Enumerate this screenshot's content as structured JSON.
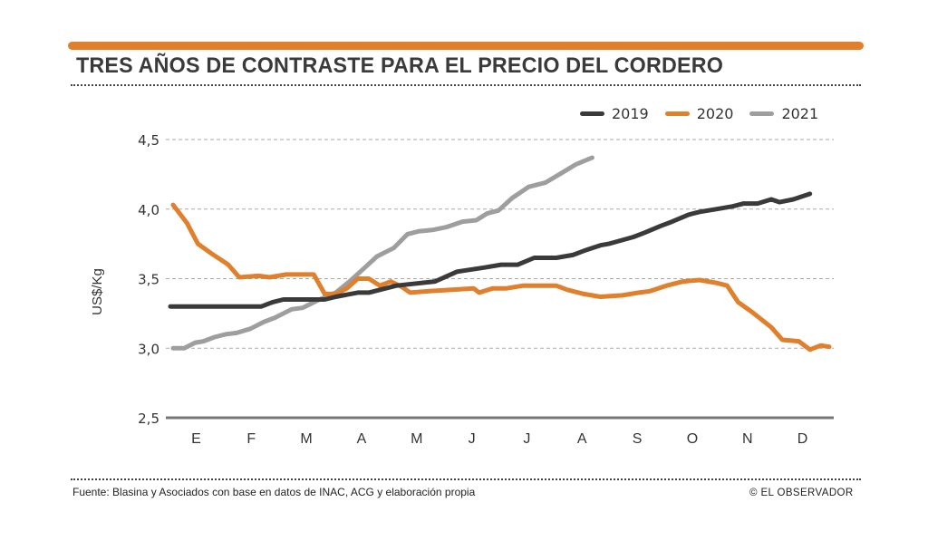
{
  "header": {
    "title": "TRES AÑOS DE CONTRASTE PARA EL PRECIO DEL CORDERO",
    "accent_color": "#e07f2c"
  },
  "footer": {
    "source": "Fuente: Blasina y Asociados con base en datos de INAC, ACG y elaboración propia",
    "credit": "© EL OBSERVADOR"
  },
  "chart_data": {
    "type": "line",
    "title": "TRES AÑOS DE CONTRASTE PARA EL PRECIO DEL CORDERO",
    "xlabel": "",
    "ylabel": "US$/Kg",
    "ylim": [
      2.5,
      4.5
    ],
    "xlim": [
      0,
      12
    ],
    "yticks": [
      "4,5",
      "4,0",
      "3,5",
      "3,0",
      "2,5"
    ],
    "ytick_values": [
      4.5,
      4.0,
      3.5,
      3.0,
      2.5
    ],
    "categories": [
      "E",
      "F",
      "M",
      "A",
      "M",
      "J",
      "J",
      "A",
      "S",
      "O",
      "N",
      "D"
    ],
    "grid": true,
    "legend_position": "top-right",
    "x_units": "months elapsed since January 1 (0–12)",
    "series": [
      {
        "name": "2019",
        "color": "#3a3a3a",
        "points": [
          [
            0.0,
            3.3
          ],
          [
            1.65,
            3.3
          ],
          [
            1.85,
            3.33
          ],
          [
            2.05,
            3.35
          ],
          [
            2.8,
            3.35
          ],
          [
            3.0,
            3.37
          ],
          [
            3.4,
            3.4
          ],
          [
            3.6,
            3.4
          ],
          [
            4.1,
            3.45
          ],
          [
            4.8,
            3.48
          ],
          [
            5.2,
            3.55
          ],
          [
            5.7,
            3.58
          ],
          [
            6.0,
            3.6
          ],
          [
            6.3,
            3.6
          ],
          [
            6.6,
            3.65
          ],
          [
            7.0,
            3.65
          ],
          [
            7.3,
            3.67
          ],
          [
            7.5,
            3.7
          ],
          [
            7.8,
            3.74
          ],
          [
            7.95,
            3.75
          ],
          [
            8.4,
            3.8
          ],
          [
            8.6,
            3.83
          ],
          [
            8.9,
            3.88
          ],
          [
            9.1,
            3.91
          ],
          [
            9.4,
            3.96
          ],
          [
            9.6,
            3.98
          ],
          [
            9.9,
            4.0
          ],
          [
            10.2,
            4.02
          ],
          [
            10.4,
            4.04
          ],
          [
            10.65,
            4.04
          ],
          [
            10.9,
            4.07
          ],
          [
            11.05,
            4.05
          ],
          [
            11.3,
            4.07
          ],
          [
            11.6,
            4.11
          ]
        ]
      },
      {
        "name": "2020",
        "color": "#e07f2c",
        "points": [
          [
            0.05,
            4.03
          ],
          [
            0.3,
            3.9
          ],
          [
            0.5,
            3.75
          ],
          [
            0.75,
            3.68
          ],
          [
            1.05,
            3.6
          ],
          [
            1.25,
            3.51
          ],
          [
            1.6,
            3.52
          ],
          [
            1.8,
            3.51
          ],
          [
            2.1,
            3.53
          ],
          [
            2.6,
            3.53
          ],
          [
            2.8,
            3.39
          ],
          [
            3.0,
            3.39
          ],
          [
            3.2,
            3.43
          ],
          [
            3.4,
            3.5
          ],
          [
            3.6,
            3.5
          ],
          [
            3.8,
            3.45
          ],
          [
            4.0,
            3.48
          ],
          [
            4.2,
            3.44
          ],
          [
            4.35,
            3.4
          ],
          [
            4.7,
            3.41
          ],
          [
            5.1,
            3.42
          ],
          [
            5.5,
            3.43
          ],
          [
            5.6,
            3.4
          ],
          [
            5.85,
            3.43
          ],
          [
            6.1,
            3.43
          ],
          [
            6.4,
            3.45
          ],
          [
            7.0,
            3.45
          ],
          [
            7.2,
            3.42
          ],
          [
            7.5,
            3.39
          ],
          [
            7.8,
            3.37
          ],
          [
            8.2,
            3.38
          ],
          [
            8.5,
            3.4
          ],
          [
            8.7,
            3.41
          ],
          [
            9.0,
            3.45
          ],
          [
            9.3,
            3.48
          ],
          [
            9.6,
            3.49
          ],
          [
            9.9,
            3.47
          ],
          [
            10.1,
            3.45
          ],
          [
            10.3,
            3.33
          ],
          [
            10.55,
            3.26
          ],
          [
            10.9,
            3.15
          ],
          [
            11.1,
            3.06
          ],
          [
            11.4,
            3.05
          ],
          [
            11.6,
            2.99
          ],
          [
            11.8,
            3.02
          ],
          [
            11.95,
            3.01
          ]
        ]
      },
      {
        "name": "2021",
        "color": "#9e9e9e",
        "points": [
          [
            0.05,
            3.0
          ],
          [
            0.25,
            3.0
          ],
          [
            0.45,
            3.04
          ],
          [
            0.6,
            3.05
          ],
          [
            0.8,
            3.08
          ],
          [
            1.0,
            3.1
          ],
          [
            1.2,
            3.11
          ],
          [
            1.45,
            3.14
          ],
          [
            1.7,
            3.19
          ],
          [
            1.9,
            3.22
          ],
          [
            2.2,
            3.28
          ],
          [
            2.4,
            3.29
          ],
          [
            2.65,
            3.34
          ],
          [
            3.0,
            3.4
          ],
          [
            3.25,
            3.48
          ],
          [
            3.5,
            3.57
          ],
          [
            3.75,
            3.66
          ],
          [
            4.05,
            3.72
          ],
          [
            4.3,
            3.82
          ],
          [
            4.5,
            3.84
          ],
          [
            4.75,
            3.85
          ],
          [
            5.0,
            3.87
          ],
          [
            5.3,
            3.91
          ],
          [
            5.55,
            3.92
          ],
          [
            5.75,
            3.97
          ],
          [
            5.95,
            3.99
          ],
          [
            6.2,
            4.08
          ],
          [
            6.5,
            4.16
          ],
          [
            6.8,
            4.19
          ],
          [
            7.1,
            4.26
          ],
          [
            7.35,
            4.32
          ],
          [
            7.65,
            4.37
          ]
        ]
      }
    ]
  }
}
